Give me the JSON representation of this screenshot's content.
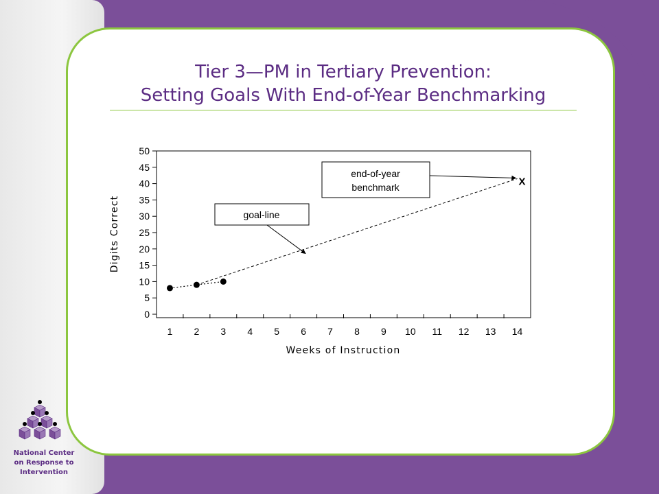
{
  "slide": {
    "title_line1": "Tier 3—PM in Tertiary Prevention:",
    "title_line2": "Setting Goals With End-of-Year Benchmarking"
  },
  "branding": {
    "org_line1": "National Center",
    "org_line2": "on Response to",
    "org_line3": "Intervention",
    "logo_icon": "stacked-cubes-logo"
  },
  "colors": {
    "background_purple": "#7b4f99",
    "accent_green": "#8cc63f",
    "title_purple": "#5b2c83"
  },
  "chart_data": {
    "type": "line",
    "xlabel": "Weeks of Instruction",
    "ylabel": "Digits Correct",
    "x_ticks": [
      1,
      2,
      3,
      4,
      5,
      6,
      7,
      8,
      9,
      10,
      11,
      12,
      13,
      14
    ],
    "y_ticks": [
      0,
      5,
      10,
      15,
      20,
      25,
      30,
      35,
      40,
      45,
      50
    ],
    "xlim": [
      0.5,
      14.5
    ],
    "ylim": [
      0,
      50
    ],
    "grid": false,
    "series": [
      {
        "style": "markers-dotted",
        "x": [
          1,
          2,
          3
        ],
        "y": [
          8,
          9,
          10
        ]
      },
      {
        "style": "dashed",
        "x": [
          2,
          14
        ],
        "y": [
          9,
          41.5
        ]
      }
    ],
    "benchmark_marker": {
      "label": "X",
      "x": 14,
      "y": 41.5
    },
    "annotations": [
      {
        "text": "goal-line",
        "points_to": [
          6,
          19
        ]
      },
      {
        "text_line1": "end-of-year",
        "text_line2": "benchmark",
        "points_to": [
          14,
          41.5
        ]
      }
    ]
  }
}
